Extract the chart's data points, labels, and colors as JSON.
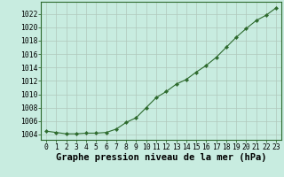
{
  "x": [
    0,
    1,
    2,
    3,
    4,
    5,
    6,
    7,
    8,
    9,
    10,
    11,
    12,
    13,
    14,
    15,
    16,
    17,
    18,
    19,
    20,
    21,
    22,
    23
  ],
  "y": [
    1004.5,
    1004.3,
    1004.1,
    1004.1,
    1004.2,
    1004.2,
    1004.3,
    1004.8,
    1005.8,
    1006.5,
    1008.0,
    1009.5,
    1010.4,
    1011.5,
    1012.2,
    1013.3,
    1014.3,
    1015.5,
    1017.0,
    1018.5,
    1019.8,
    1021.0,
    1021.8,
    1022.9
  ],
  "line_color": "#2d6a2d",
  "marker": "D",
  "marker_size": 2.2,
  "bg_color": "#c8ece0",
  "grid_color": "#b0c8bc",
  "title": "Graphe pression niveau de la mer (hPa)",
  "xlabel_ticks": [
    0,
    1,
    2,
    3,
    4,
    5,
    6,
    7,
    8,
    9,
    10,
    11,
    12,
    13,
    14,
    15,
    16,
    17,
    18,
    19,
    20,
    21,
    22,
    23
  ],
  "ytick_values": [
    1004,
    1006,
    1008,
    1010,
    1012,
    1014,
    1016,
    1018,
    1020,
    1022
  ],
  "ylim": [
    1003.2,
    1023.8
  ],
  "xlim": [
    -0.5,
    23.5
  ],
  "title_fontsize": 7.5,
  "tick_fontsize": 5.8
}
